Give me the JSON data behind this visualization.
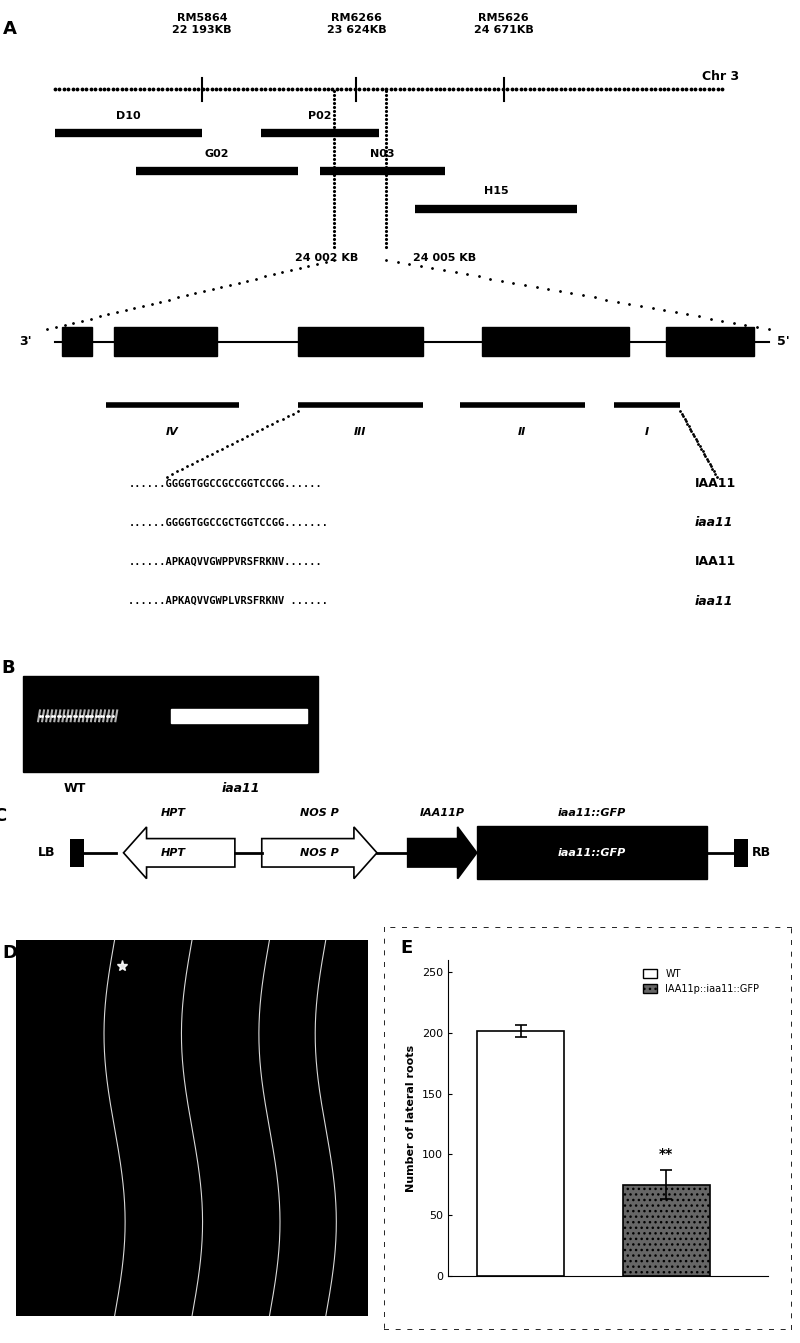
{
  "fig_width": 8.0,
  "fig_height": 13.43,
  "bg_color": "#ffffff",
  "panel_E": {
    "values": [
      202,
      75
    ],
    "errors": [
      5,
      12
    ],
    "ylabel": "Number of lateral roots",
    "yticks": [
      0,
      50,
      100,
      150,
      200,
      250
    ],
    "significance": "**",
    "wt_color": "white",
    "mut_color": "#666666"
  }
}
